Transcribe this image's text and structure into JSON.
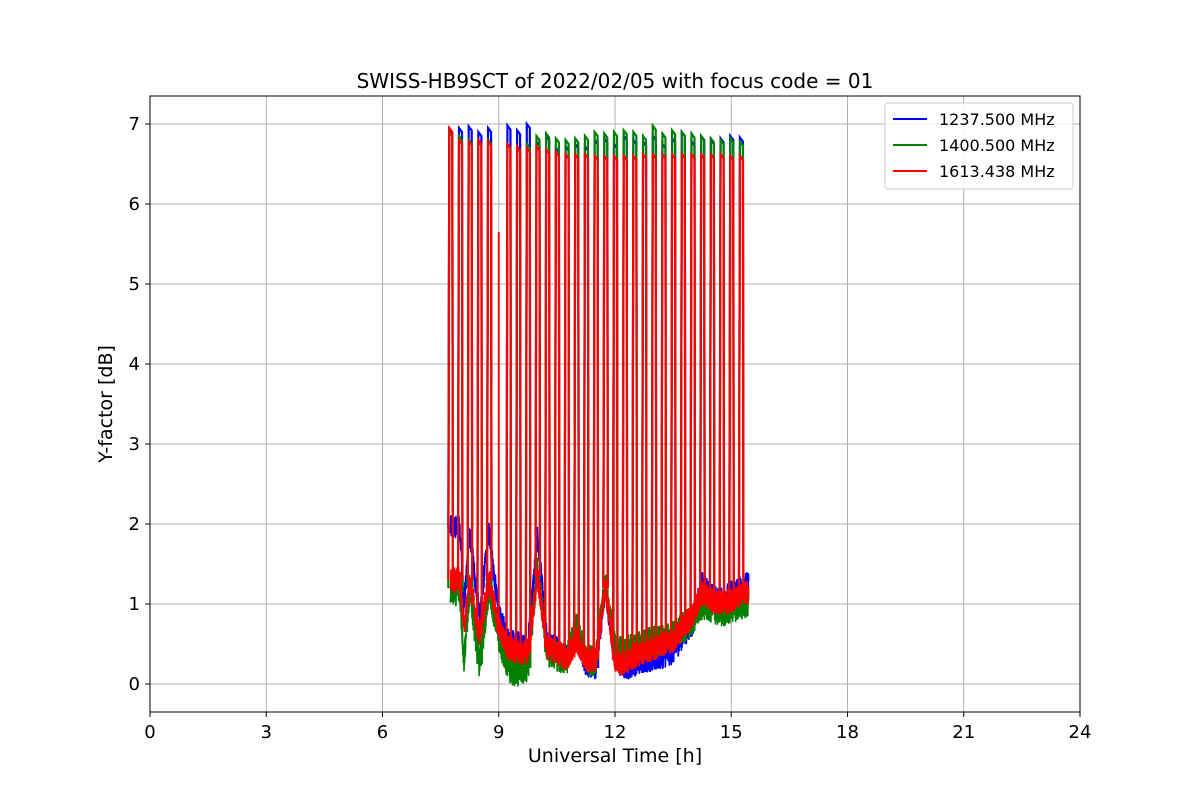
{
  "chart_data": {
    "type": "line",
    "title": "SWISS-HB9SCT of 2022/02/05 with focus code = 01",
    "xlabel": "Universal Time [h]",
    "ylabel": "Y-factor [dB]",
    "xlim": [
      0,
      24
    ],
    "ylim": [
      -0.35,
      7.35
    ],
    "xticks": [
      0,
      3,
      6,
      9,
      12,
      15,
      18,
      21,
      24
    ],
    "yticks": [
      0,
      1,
      2,
      3,
      4,
      5,
      6,
      7
    ],
    "grid": true,
    "legend_position": "top-right",
    "calibration_spike_times": [
      7.75,
      8.0,
      8.25,
      8.5,
      8.75,
      9.25,
      9.5,
      9.75,
      10.0,
      10.25,
      10.5,
      10.75,
      11.0,
      11.25,
      11.5,
      11.75,
      12.0,
      12.25,
      12.5,
      12.75,
      13.0,
      13.25,
      13.5,
      13.75,
      14.0,
      14.25,
      14.5,
      14.75,
      15.0,
      15.25
    ],
    "series": [
      {
        "name": "1237.500 MHz",
        "color": "#0000ff",
        "baseline": [
          {
            "x": 7.75,
            "y": 1.95
          },
          {
            "x": 8.0,
            "y": 1.95
          },
          {
            "x": 8.1,
            "y": 0.95
          },
          {
            "x": 8.25,
            "y": 1.9
          },
          {
            "x": 8.5,
            "y": 0.85
          },
          {
            "x": 8.75,
            "y": 1.9
          },
          {
            "x": 9.0,
            "y": 0.85
          },
          {
            "x": 9.25,
            "y": 0.55
          },
          {
            "x": 9.5,
            "y": 0.5
          },
          {
            "x": 9.75,
            "y": 0.45
          },
          {
            "x": 10.0,
            "y": 1.85
          },
          {
            "x": 10.25,
            "y": 0.5
          },
          {
            "x": 10.5,
            "y": 0.45
          },
          {
            "x": 10.75,
            "y": 0.35
          },
          {
            "x": 11.0,
            "y": 0.6
          },
          {
            "x": 11.25,
            "y": 0.25
          },
          {
            "x": 11.5,
            "y": 0.2
          },
          {
            "x": 11.75,
            "y": 1.2
          },
          {
            "x": 12.0,
            "y": 0.3
          },
          {
            "x": 12.25,
            "y": 0.2
          },
          {
            "x": 12.5,
            "y": 0.25
          },
          {
            "x": 12.75,
            "y": 0.3
          },
          {
            "x": 13.0,
            "y": 0.3
          },
          {
            "x": 13.25,
            "y": 0.35
          },
          {
            "x": 13.5,
            "y": 0.4
          },
          {
            "x": 13.75,
            "y": 0.6
          },
          {
            "x": 14.0,
            "y": 0.75
          },
          {
            "x": 14.25,
            "y": 1.25
          },
          {
            "x": 14.5,
            "y": 1.1
          },
          {
            "x": 14.75,
            "y": 1.05
          },
          {
            "x": 15.0,
            "y": 1.15
          },
          {
            "x": 15.25,
            "y": 1.2
          },
          {
            "x": 15.45,
            "y": 1.25
          }
        ],
        "peaks": [
          6.93,
          6.95,
          6.97,
          6.9,
          6.95,
          6.98,
          6.92,
          7.0,
          6.78,
          6.85,
          6.7,
          6.72,
          6.75,
          6.72,
          6.8,
          6.82,
          6.75,
          6.85,
          6.8,
          6.78,
          6.85,
          6.75,
          6.82,
          6.9,
          6.78,
          6.85,
          6.8,
          6.82,
          6.85,
          6.83
        ]
      },
      {
        "name": "1400.500 MHz",
        "color": "#008000",
        "baseline": [
          {
            "x": 7.75,
            "y": 1.2
          },
          {
            "x": 8.0,
            "y": 1.15
          },
          {
            "x": 8.1,
            "y": 0.3
          },
          {
            "x": 8.25,
            "y": 1.2
          },
          {
            "x": 8.5,
            "y": 0.25
          },
          {
            "x": 8.75,
            "y": 1.2
          },
          {
            "x": 9.0,
            "y": 0.6
          },
          {
            "x": 9.25,
            "y": 0.2
          },
          {
            "x": 9.5,
            "y": 0.15
          },
          {
            "x": 9.75,
            "y": 0.2
          },
          {
            "x": 10.0,
            "y": 1.45
          },
          {
            "x": 10.25,
            "y": 0.4
          },
          {
            "x": 10.5,
            "y": 0.35
          },
          {
            "x": 10.75,
            "y": 0.3
          },
          {
            "x": 11.0,
            "y": 0.7
          },
          {
            "x": 11.25,
            "y": 0.3
          },
          {
            "x": 11.5,
            "y": 0.3
          },
          {
            "x": 11.75,
            "y": 1.25
          },
          {
            "x": 12.0,
            "y": 0.45
          },
          {
            "x": 12.25,
            "y": 0.4
          },
          {
            "x": 12.5,
            "y": 0.45
          },
          {
            "x": 12.75,
            "y": 0.5
          },
          {
            "x": 13.0,
            "y": 0.55
          },
          {
            "x": 13.25,
            "y": 0.55
          },
          {
            "x": 13.5,
            "y": 0.6
          },
          {
            "x": 13.75,
            "y": 0.7
          },
          {
            "x": 14.0,
            "y": 0.8
          },
          {
            "x": 14.25,
            "y": 1.0
          },
          {
            "x": 14.5,
            "y": 0.95
          },
          {
            "x": 14.75,
            "y": 0.9
          },
          {
            "x": 15.0,
            "y": 0.95
          },
          {
            "x": 15.25,
            "y": 1.0
          },
          {
            "x": 15.45,
            "y": 1.0
          }
        ],
        "peaks": [
          6.9,
          6.85,
          6.8,
          6.78,
          6.8,
          6.75,
          6.7,
          6.75,
          6.85,
          6.88,
          6.82,
          6.8,
          6.82,
          6.85,
          6.9,
          6.88,
          6.9,
          6.92,
          6.9,
          6.85,
          6.98,
          6.88,
          6.92,
          6.9,
          6.88,
          6.85,
          6.82,
          6.8,
          6.82,
          6.78
        ]
      },
      {
        "name": "1613.438 MHz",
        "color": "#ff0000",
        "baseline": [
          {
            "x": 7.75,
            "y": 1.3
          },
          {
            "x": 8.0,
            "y": 1.3
          },
          {
            "x": 8.1,
            "y": 0.7
          },
          {
            "x": 8.25,
            "y": 1.3
          },
          {
            "x": 8.5,
            "y": 0.6
          },
          {
            "x": 8.75,
            "y": 1.3
          },
          {
            "x": 9.0,
            "y": 0.7
          },
          {
            "x": 9.25,
            "y": 0.45
          },
          {
            "x": 9.5,
            "y": 0.4
          },
          {
            "x": 9.75,
            "y": 0.4
          },
          {
            "x": 10.0,
            "y": 1.35
          },
          {
            "x": 10.25,
            "y": 0.45
          },
          {
            "x": 10.5,
            "y": 0.4
          },
          {
            "x": 10.75,
            "y": 0.3
          },
          {
            "x": 11.0,
            "y": 0.55
          },
          {
            "x": 11.25,
            "y": 0.3
          },
          {
            "x": 11.5,
            "y": 0.3
          },
          {
            "x": 11.75,
            "y": 1.2
          },
          {
            "x": 12.0,
            "y": 0.3
          },
          {
            "x": 12.25,
            "y": 0.25
          },
          {
            "x": 12.5,
            "y": 0.35
          },
          {
            "x": 12.75,
            "y": 0.4
          },
          {
            "x": 13.0,
            "y": 0.45
          },
          {
            "x": 13.25,
            "y": 0.5
          },
          {
            "x": 13.5,
            "y": 0.55
          },
          {
            "x": 13.75,
            "y": 0.7
          },
          {
            "x": 14.0,
            "y": 0.85
          },
          {
            "x": 14.25,
            "y": 1.15
          },
          {
            "x": 14.5,
            "y": 1.05
          },
          {
            "x": 14.75,
            "y": 1.0
          },
          {
            "x": 15.0,
            "y": 1.05
          },
          {
            "x": 15.25,
            "y": 1.1
          },
          {
            "x": 15.45,
            "y": 1.15
          }
        ],
        "peaks": [
          6.95,
          6.8,
          6.78,
          6.8,
          6.78,
          6.75,
          6.72,
          6.7,
          6.72,
          6.68,
          6.65,
          6.62,
          6.62,
          6.62,
          6.6,
          6.6,
          6.6,
          6.6,
          6.6,
          6.62,
          6.62,
          6.62,
          6.62,
          6.62,
          6.62,
          6.62,
          6.62,
          6.62,
          6.6,
          6.6
        ]
      }
    ],
    "annotations": [
      {
        "x": 9.0,
        "y": 5.65,
        "series": "1613.438 MHz",
        "note": "partial spike"
      }
    ]
  }
}
